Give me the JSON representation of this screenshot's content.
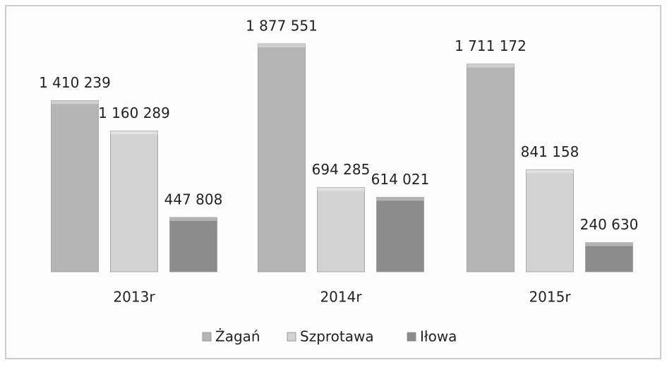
{
  "chart_data": {
    "type": "bar",
    "categories": [
      "2013r",
      "2014r",
      "2015r"
    ],
    "series": [
      {
        "name": "Żagań",
        "color": "#b5b5b5",
        "values": [
          1410239,
          1877551,
          1711172
        ],
        "value_labels": [
          "1 410 239",
          "1 877 551",
          "1 711 172"
        ]
      },
      {
        "name": "Szprotawa",
        "color": "#d2d2d2",
        "values": [
          1160289,
          694285,
          841158
        ],
        "value_labels": [
          "1 160 289",
          "694 285",
          "841 158"
        ]
      },
      {
        "name": "Iłowa",
        "color": "#8c8c8c",
        "values": [
          447808,
          614021,
          240630
        ],
        "value_labels": [
          "447 808",
          "614 021",
          "240 630"
        ]
      }
    ]
  }
}
